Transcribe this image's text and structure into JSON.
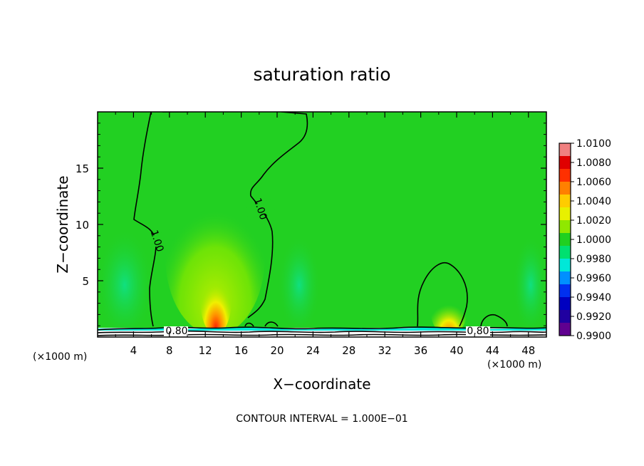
{
  "chart_data": {
    "type": "heatmap",
    "title": "saturation ratio",
    "xlabel": "X−coordinate",
    "ylabel": "Z−coordinate",
    "xlim": [
      0,
      50
    ],
    "ylim": [
      0,
      20
    ],
    "x_ticks": [
      4,
      8,
      12,
      16,
      20,
      24,
      28,
      32,
      36,
      40,
      44,
      48
    ],
    "y_ticks": [
      5,
      10,
      15
    ],
    "x_unit_label": "(×1000 m)",
    "y_unit_label": "(×1000 m)",
    "contour_interval_text": "CONTOUR INTERVAL = 1.000E−01",
    "contour_labels": [
      {
        "text": "1.00",
        "x": 6.8,
        "y": 9.0
      },
      {
        "text": "1.00",
        "x": 18.6,
        "y": 12.3
      },
      {
        "text": "0.80",
        "x": 9.3,
        "y": 0.5
      },
      {
        "text": "0.80",
        "x": 40.9,
        "y": 0.5
      }
    ],
    "colorbar": {
      "levels": [
        "1.0100",
        "1.0080",
        "1.0060",
        "1.0040",
        "1.0020",
        "1.0000",
        "0.9980",
        "0.9960",
        "0.9940",
        "0.9920",
        "0.9900"
      ],
      "colors": [
        "#f08080",
        "#e00000",
        "#ff3000",
        "#ff8000",
        "#ffcc00",
        "#e8f000",
        "#90e800",
        "#20d020",
        "#00e070",
        "#00e8d8",
        "#0090ff",
        "#0030f0",
        "#0000c0",
        "#2000a0",
        "#600090"
      ]
    },
    "field": {
      "background_value": 1.0,
      "features": [
        {
          "x": 13.2,
          "z": 1.5,
          "max_value": 1.0065
        },
        {
          "x": 38.8,
          "z": 1.2,
          "max_value": 1.0035
        }
      ]
    }
  }
}
